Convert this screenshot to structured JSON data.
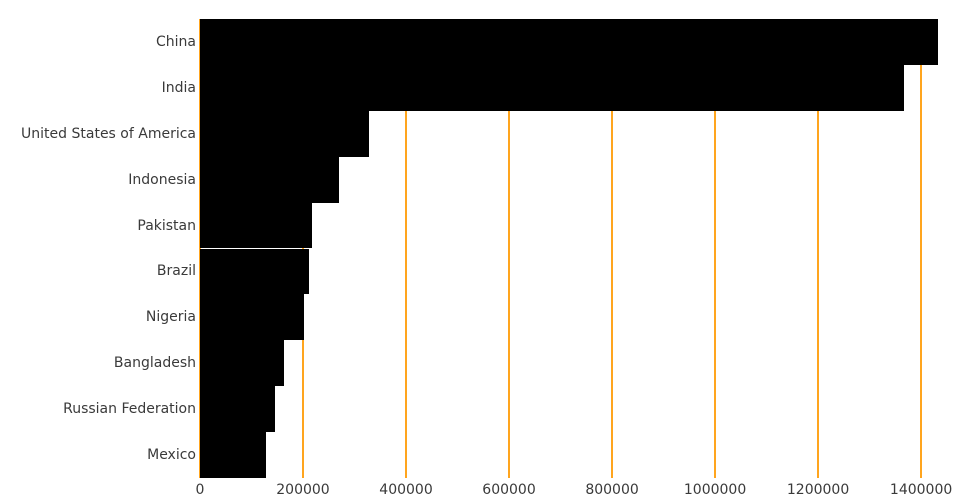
{
  "chart_data": {
    "type": "bar",
    "orientation": "horizontal",
    "title": "",
    "xlabel": "",
    "ylabel": "",
    "categories": [
      "China",
      "India",
      "United States of America",
      "Indonesia",
      "Pakistan",
      "Brazil",
      "Nigeria",
      "Bangladesh",
      "Russian Federation",
      "Mexico"
    ],
    "values": [
      1433784,
      1366418,
      329065,
      270626,
      216565,
      211050,
      200964,
      163046,
      145872,
      127576
    ],
    "x_ticks": [
      0,
      200000,
      400000,
      600000,
      800000,
      1000000,
      1200000,
      1400000
    ],
    "x_tick_labels": [
      "0",
      "200000",
      "400000",
      "600000",
      "800000",
      "1000000",
      "1200000",
      "1400000"
    ],
    "xlim": [
      0,
      1460000
    ],
    "grid": {
      "show": true,
      "axis": "x",
      "position": "vertical-lines"
    },
    "legend": "none",
    "bar_gap": 0,
    "colors": {
      "bar": "#000000",
      "gridline": "#FFA51E",
      "tick_text": "#3A3A3A",
      "background": "#FFFFFF"
    }
  }
}
